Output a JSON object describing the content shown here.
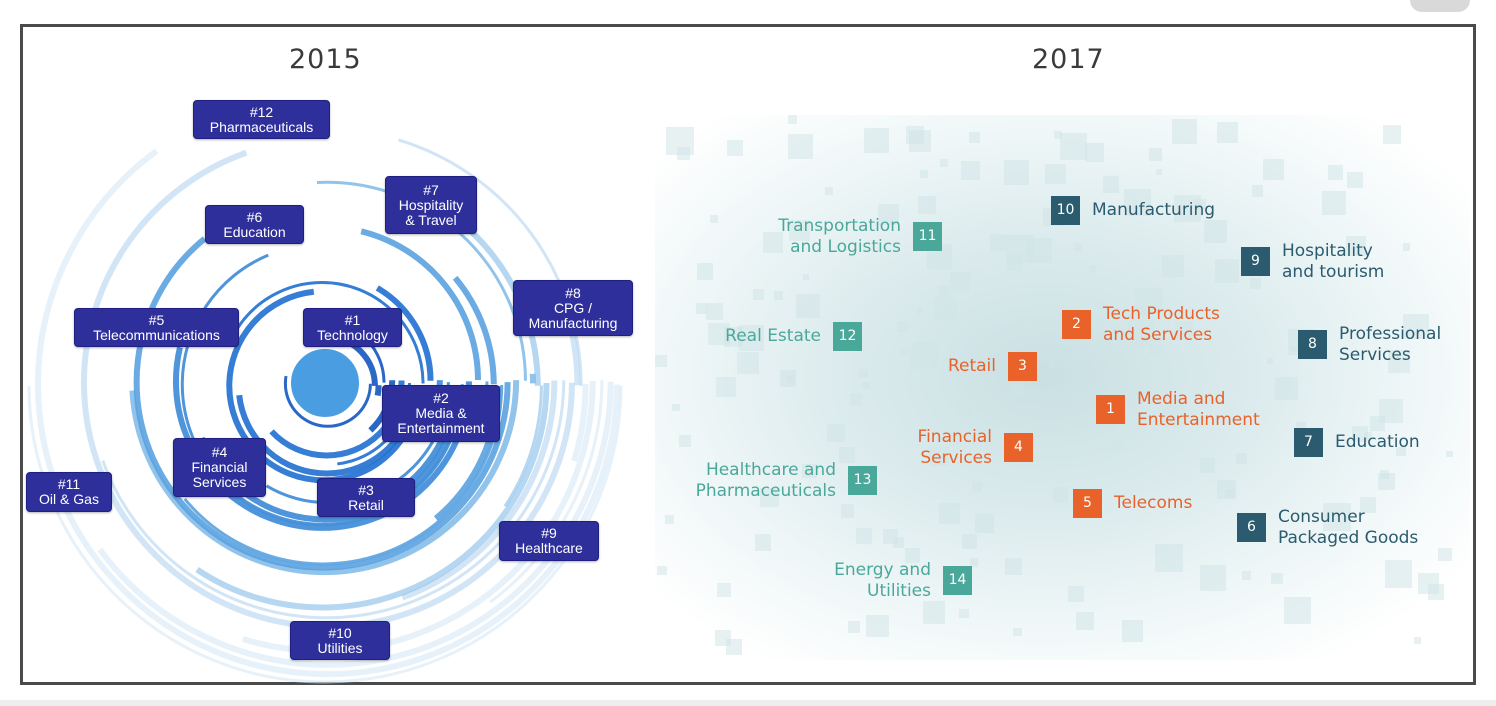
{
  "colors": {
    "box": "#2e2f9a",
    "teal": "#4aa89a",
    "orange": "#e8622a",
    "dark": "#2b5b6e"
  },
  "panel2015": {
    "title": "2015",
    "items": [
      {
        "rank": "#1",
        "label": "Technology"
      },
      {
        "rank": "#2",
        "label": "Media &\nEntertainment"
      },
      {
        "rank": "#3",
        "label": "Retail"
      },
      {
        "rank": "#4",
        "label": "Financial\nServices"
      },
      {
        "rank": "#5",
        "label": "Telecommunications"
      },
      {
        "rank": "#6",
        "label": "Education"
      },
      {
        "rank": "#7",
        "label": "Hospitality\n& Travel"
      },
      {
        "rank": "#8",
        "label": "CPG /\nManufacturing"
      },
      {
        "rank": "#9",
        "label": "Healthcare"
      },
      {
        "rank": "#10",
        "label": "Utilities"
      },
      {
        "rank": "#11",
        "label": "Oil & Gas"
      },
      {
        "rank": "#12",
        "label": "Pharmaceuticals"
      }
    ]
  },
  "panel2017": {
    "title": "2017",
    "items": [
      {
        "rank": "1",
        "label": "Media and\nEntertainment",
        "color": "orange"
      },
      {
        "rank": "2",
        "label": "Tech Products\nand Services",
        "color": "orange"
      },
      {
        "rank": "3",
        "label": "Retail",
        "color": "orange"
      },
      {
        "rank": "4",
        "label": "Financial\nServices",
        "color": "orange"
      },
      {
        "rank": "5",
        "label": "Telecoms",
        "color": "orange"
      },
      {
        "rank": "6",
        "label": "Consumer\nPackaged Goods",
        "color": "dark"
      },
      {
        "rank": "7",
        "label": "Education",
        "color": "dark"
      },
      {
        "rank": "8",
        "label": "Professional\nServices",
        "color": "dark"
      },
      {
        "rank": "9",
        "label": "Hospitality\nand tourism",
        "color": "dark"
      },
      {
        "rank": "10",
        "label": "Manufacturing",
        "color": "dark"
      },
      {
        "rank": "11",
        "label": "Transportation\nand Logistics",
        "color": "teal"
      },
      {
        "rank": "12",
        "label": "Real Estate",
        "color": "teal"
      },
      {
        "rank": "13",
        "label": "Healthcare and\nPharmaceuticals",
        "color": "teal"
      },
      {
        "rank": "14",
        "label": "Energy and\nUtilities",
        "color": "teal"
      }
    ]
  }
}
